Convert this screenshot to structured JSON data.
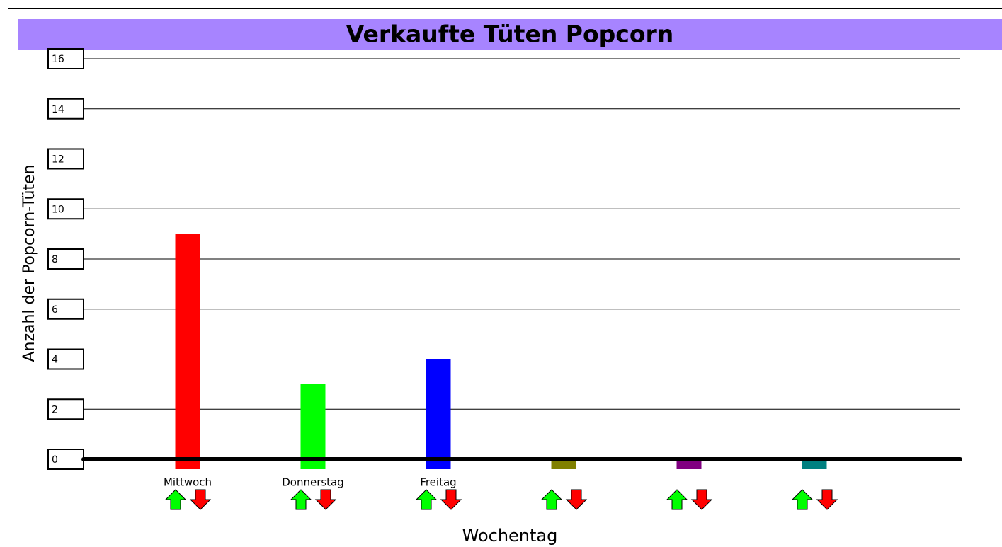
{
  "chart_data": {
    "type": "bar",
    "title": "Verkaufte Tüten Popcorn",
    "x_label": "Wochentag",
    "y_label": "Anzahl der Popcorn-Tüten",
    "categories": [
      "Mittwoch",
      "Donnerstag",
      "Freitag",
      null,
      null,
      null
    ],
    "values": [
      9,
      3,
      4,
      0,
      0,
      0
    ],
    "colors": [
      "#ff0000",
      "#00ff00",
      "#0000ff",
      "#808000",
      "#800080",
      "#008080"
    ],
    "ylim": [
      0,
      16
    ],
    "yticks": [
      0,
      2,
      4,
      6,
      8,
      10,
      12,
      14,
      16
    ],
    "grid": true
  }
}
